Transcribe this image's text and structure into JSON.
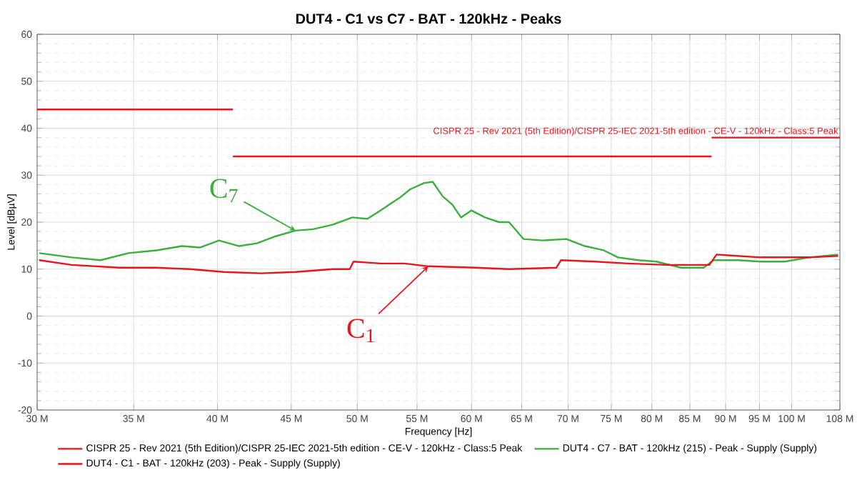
{
  "chart_data": {
    "type": "line",
    "title": "DUT4 - C1 vs C7 - BAT - 120kHz - Peaks",
    "xlabel": "Frequency [Hz]",
    "ylabel": "Level [dBµV]",
    "log": "x",
    "grid": true,
    "legend": "bottom",
    "xlim": [
      30,
      108
    ],
    "ylim": [
      -20,
      60
    ],
    "xticks": [
      {
        "value": 30,
        "label": "30 M"
      },
      {
        "value": 35,
        "label": "35 M"
      },
      {
        "value": 40,
        "label": "40 M"
      },
      {
        "value": 45,
        "label": "45 M"
      },
      {
        "value": 50,
        "label": "50 M"
      },
      {
        "value": 55,
        "label": "55 M"
      },
      {
        "value": 60,
        "label": "60 M"
      },
      {
        "value": 65,
        "label": "65 M"
      },
      {
        "value": 70,
        "label": "70 M"
      },
      {
        "value": 75,
        "label": "75 M"
      },
      {
        "value": 80,
        "label": "80 M"
      },
      {
        "value": 85,
        "label": "85 M"
      },
      {
        "value": 90,
        "label": "90 M"
      },
      {
        "value": 95,
        "label": "95 M"
      },
      {
        "value": 100,
        "label": "100 M"
      },
      {
        "value": 108,
        "label": "108 M"
      }
    ],
    "yticks": [
      -20,
      -10,
      0,
      10,
      20,
      30,
      40,
      50,
      60
    ],
    "series": [
      {
        "name": "CISPR 25 - Rev 2021 (5th Edition)/CISPR 25-IEC 2021-5th edition - CE-V - 120kHz - Class:5 Peak",
        "type": "step",
        "color": "#e8141c",
        "x": [
          30,
          41,
          88,
          108
        ],
        "values": [
          44,
          34,
          38,
          38
        ]
      },
      {
        "name": "DUT4 - C7 - BAT - 120kHz (215) - Peak - Supply (Supply)",
        "color": "#3cae3c",
        "x": [
          30.1,
          31.7,
          33.2,
          34.7,
          36.3,
          37.8,
          38.9,
          40.1,
          41.4,
          42.6,
          43.9,
          45.3,
          46.6,
          48.1,
          49.6,
          50.8,
          51.9,
          53.5,
          54.4,
          55.6,
          56.4,
          57.3,
          58.2,
          59.0,
          60.0,
          61.3,
          62.7,
          63.7,
          65.2,
          67.2,
          69.8,
          71.9,
          74.1,
          75.8,
          78.3,
          80.6,
          83.8,
          86.9,
          88.3,
          91.8,
          95.2,
          98.9,
          102.8,
          107.7
        ],
        "values": [
          13.4,
          12.5,
          11.9,
          13.4,
          14.0,
          14.9,
          14.6,
          16.1,
          14.9,
          15.5,
          17.0,
          18.2,
          18.5,
          19.5,
          21.0,
          20.7,
          22.5,
          25.2,
          27.0,
          28.3,
          28.6,
          25.5,
          23.7,
          21.0,
          22.5,
          21.0,
          20.0,
          20.0,
          16.4,
          16.1,
          16.4,
          14.9,
          14.0,
          12.5,
          11.9,
          11.6,
          10.3,
          10.3,
          11.9,
          11.9,
          11.6,
          11.6,
          12.5,
          13.1
        ]
      },
      {
        "name": "DUT4 - C1 - BAT - 120kHz (203) - Peak - Supply (Supply)",
        "color": "#e8141c",
        "x": [
          30.1,
          31.7,
          34.2,
          36.3,
          38.3,
          40.4,
          42.9,
          45.3,
          48.1,
          49.4,
          49.7,
          51.9,
          53.9,
          56.0,
          60.4,
          63.7,
          68.7,
          69.2,
          73.1,
          77.0,
          81.9,
          87.7,
          88.7,
          95.2,
          102.8,
          107.7
        ],
        "values": [
          11.9,
          10.9,
          10.3,
          10.3,
          10.0,
          9.4,
          9.1,
          9.4,
          10.0,
          10.0,
          11.6,
          11.2,
          11.2,
          10.6,
          10.3,
          10.0,
          10.3,
          11.9,
          11.6,
          11.2,
          10.9,
          10.9,
          13.1,
          12.5,
          12.5,
          12.8
        ]
      }
    ],
    "annotations": [
      {
        "text": "CISPR 25 - Rev 2021 (5th Edition)/CISPR 25-IEC 2021-5th edition - CE-V - 120kHz - Class:5 Peak",
        "x": 108,
        "y": 38
      },
      {
        "text": "C$_{7}$",
        "x": 45.3,
        "y": 18.2
      },
      {
        "text": "C$_{1}$",
        "x": 56,
        "y": 10.6
      }
    ]
  }
}
